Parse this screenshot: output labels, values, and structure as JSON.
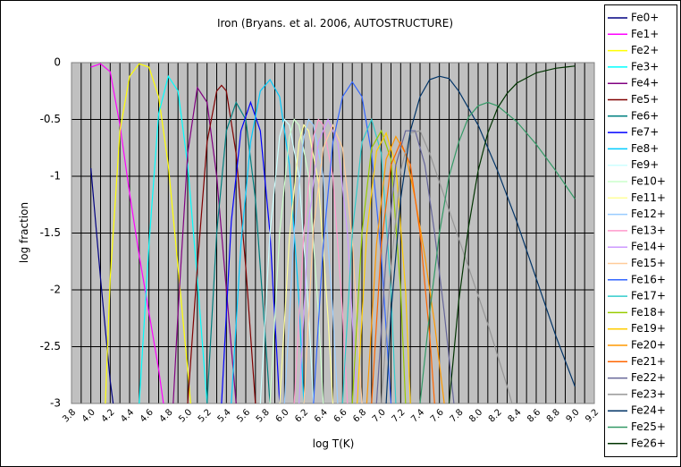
{
  "chart_data": {
    "type": "line",
    "title": "Iron (Bryans. et al. 2006, AUTOSTRUCTURE)",
    "xlabel": "log T(K)",
    "ylabel": "log fraction",
    "xlim": [
      3.8,
      9.2
    ],
    "ylim": [
      -3,
      0
    ],
    "xticks": [
      3.8,
      {
        "value": 4,
        "label": "4.0"
      },
      4.2,
      4.4,
      4.6,
      4.8,
      {
        "value": 5,
        "label": "5.0"
      },
      5.2,
      5.4,
      5.6,
      5.8,
      {
        "value": 6,
        "label": "6.0"
      },
      6.2,
      6.4,
      6.6,
      6.8,
      {
        "value": 7,
        "label": "7.0"
      },
      7.2,
      7.4,
      7.6,
      7.8,
      {
        "value": 8,
        "label": "8.0"
      },
      8.2,
      8.4,
      8.6,
      8.8,
      {
        "value": 9,
        "label": "9.0"
      },
      9.2
    ],
    "xminorticks": [
      3.9,
      4.1,
      4.3,
      4.5,
      4.7,
      4.9,
      5.1,
      5.3,
      5.5,
      5.7,
      5.9,
      6.1,
      6.3,
      6.5,
      6.7,
      6.9,
      7.1,
      7.3,
      7.5,
      7.7,
      7.9,
      8.1,
      8.3,
      8.5,
      8.7,
      8.9,
      9.1
    ],
    "yticks": [
      0,
      -0.5,
      -1,
      -1.5,
      -2,
      -2.5,
      -3
    ],
    "grid": true,
    "legend": "right",
    "background": "#c0c0c0",
    "series": [
      {
        "name": "Fe0+",
        "color": "#000080",
        "x": [
          4.0,
          4.1,
          4.2,
          4.23
        ],
        "values": [
          -0.93,
          -1.9,
          -2.8,
          -3
        ]
      },
      {
        "name": "Fe1+",
        "color": "#ff00ff",
        "x": [
          4.0,
          4.1,
          4.2,
          4.3,
          4.4,
          4.5,
          4.6,
          4.7,
          4.75
        ],
        "values": [
          -0.04,
          -0.01,
          -0.08,
          -0.55,
          -1.15,
          -1.7,
          -2.2,
          -2.7,
          -3
        ]
      },
      {
        "name": "Fe2+",
        "color": "#ffff00",
        "x": [
          4.15,
          4.2,
          4.3,
          4.4,
          4.5,
          4.6,
          4.7,
          4.8,
          4.9,
          5.0,
          5.03
        ],
        "values": [
          -3,
          -1.9,
          -0.6,
          -0.12,
          -0.01,
          -0.04,
          -0.3,
          -0.9,
          -1.8,
          -2.7,
          -3
        ]
      },
      {
        "name": "Fe3+",
        "color": "#00ffff",
        "x": [
          4.5,
          4.6,
          4.7,
          4.8,
          4.9,
          5.0,
          5.1,
          5.2
        ],
        "values": [
          -3,
          -1.6,
          -0.45,
          -0.12,
          -0.25,
          -0.9,
          -1.9,
          -3
        ]
      },
      {
        "name": "Fe4+",
        "color": "#800080",
        "x": [
          4.85,
          4.9,
          5.0,
          5.1,
          5.2,
          5.3,
          5.4,
          5.5
        ],
        "values": [
          -3,
          -2.2,
          -0.8,
          -0.22,
          -0.35,
          -1.0,
          -2.0,
          -3
        ]
      },
      {
        "name": "Fe5+",
        "color": "#800000",
        "x": [
          5.0,
          5.1,
          5.2,
          5.3,
          5.35,
          5.4,
          5.5,
          5.6,
          5.7
        ],
        "values": [
          -3,
          -1.8,
          -0.7,
          -0.25,
          -0.2,
          -0.25,
          -0.8,
          -1.8,
          -3
        ]
      },
      {
        "name": "Fe6+",
        "color": "#008080",
        "x": [
          5.2,
          5.3,
          5.4,
          5.5,
          5.6,
          5.7,
          5.8,
          5.85
        ],
        "values": [
          -3,
          -1.5,
          -0.6,
          -0.35,
          -0.5,
          -1.2,
          -2.4,
          -3
        ]
      },
      {
        "name": "Fe7+",
        "color": "#0000ff",
        "x": [
          5.35,
          5.45,
          5.55,
          5.65,
          5.75,
          5.85,
          5.95
        ],
        "values": [
          -3,
          -1.4,
          -0.6,
          -0.35,
          -0.6,
          -1.5,
          -3
        ]
      },
      {
        "name": "Fe8+",
        "color": "#00ccff",
        "x": [
          5.45,
          5.55,
          5.65,
          5.75,
          5.85,
          5.95,
          6.05,
          6.15,
          6.2
        ],
        "values": [
          -3,
          -1.6,
          -0.7,
          -0.25,
          -0.15,
          -0.3,
          -0.9,
          -2.1,
          -3
        ]
      },
      {
        "name": "Fe9+",
        "color": "#ccffff",
        "x": [
          5.75,
          5.85,
          5.95,
          6.0,
          6.05,
          6.15,
          6.25,
          6.3
        ],
        "values": [
          -3,
          -1.5,
          -0.65,
          -0.5,
          -0.55,
          -1.0,
          -2.2,
          -3
        ]
      },
      {
        "name": "Fe10+",
        "color": "#ccffcc",
        "x": [
          5.85,
          5.95,
          6.05,
          6.1,
          6.15,
          6.25,
          6.35,
          6.4
        ],
        "values": [
          -3,
          -1.5,
          -0.65,
          -0.5,
          -0.55,
          -1.0,
          -2.2,
          -3
        ]
      },
      {
        "name": "Fe11+",
        "color": "#ffff99",
        "x": [
          5.95,
          6.05,
          6.15,
          6.2,
          6.25,
          6.35,
          6.45,
          6.5
        ],
        "values": [
          -3,
          -1.55,
          -0.7,
          -0.55,
          -0.6,
          -1.05,
          -2.25,
          -3
        ]
      },
      {
        "name": "Fe12+",
        "color": "#99ccff",
        "x": [
          6.0,
          6.1,
          6.2,
          6.25,
          6.3,
          6.4,
          6.5,
          6.55
        ],
        "values": [
          -3,
          -1.5,
          -0.65,
          -0.5,
          -0.55,
          -1.0,
          -2.2,
          -3
        ]
      },
      {
        "name": "Fe13+",
        "color": "#ff99cc",
        "x": [
          6.1,
          6.2,
          6.3,
          6.35,
          6.4,
          6.5,
          6.6,
          6.65
        ],
        "values": [
          -3,
          -1.5,
          -0.65,
          -0.5,
          -0.55,
          -1.0,
          -2.2,
          -3
        ]
      },
      {
        "name": "Fe14+",
        "color": "#cc99ff",
        "x": [
          6.15,
          6.25,
          6.35,
          6.45,
          6.55,
          6.65,
          6.75
        ],
        "values": [
          -3,
          -1.4,
          -0.7,
          -0.5,
          -0.7,
          -1.5,
          -3
        ]
      },
      {
        "name": "Fe15+",
        "color": "#ffcc99",
        "x": [
          6.2,
          6.3,
          6.4,
          6.5,
          6.6,
          6.7,
          6.8
        ],
        "values": [
          -3,
          -1.45,
          -0.75,
          -0.55,
          -0.75,
          -1.55,
          -3
        ]
      },
      {
        "name": "Fe16+",
        "color": "#3366ff",
        "x": [
          6.3,
          6.4,
          6.5,
          6.6,
          6.7,
          6.8,
          6.9,
          7.0,
          7.1
        ],
        "values": [
          -3,
          -1.6,
          -0.7,
          -0.3,
          -0.17,
          -0.3,
          -0.8,
          -1.7,
          -3
        ]
      },
      {
        "name": "Fe17+",
        "color": "#33cccc",
        "x": [
          6.6,
          6.7,
          6.8,
          6.9,
          7.0,
          7.1,
          7.15
        ],
        "values": [
          -3,
          -1.5,
          -0.7,
          -0.5,
          -0.8,
          -2.0,
          -3
        ]
      },
      {
        "name": "Fe18+",
        "color": "#99cc00",
        "x": [
          6.7,
          6.8,
          6.9,
          7.0,
          7.1,
          7.2,
          7.25
        ],
        "values": [
          -3,
          -1.5,
          -0.75,
          -0.6,
          -0.85,
          -2.0,
          -3
        ]
      },
      {
        "name": "Fe19+",
        "color": "#ffcc00",
        "x": [
          6.75,
          6.85,
          6.95,
          7.05,
          7.15,
          7.25,
          7.3
        ],
        "values": [
          -3,
          -1.5,
          -0.78,
          -0.62,
          -0.9,
          -2.0,
          -3
        ]
      },
      {
        "name": "Fe20+",
        "color": "#ff9900",
        "x": [
          6.85,
          6.95,
          7.05,
          7.15,
          7.25,
          7.35,
          7.45,
          7.55,
          7.65
        ],
        "values": [
          -3,
          -1.6,
          -0.85,
          -0.65,
          -0.8,
          -1.2,
          -1.7,
          -2.3,
          -3
        ]
      },
      {
        "name": "Fe21+",
        "color": "#ff6600",
        "x": [
          6.9,
          7.0,
          7.1,
          7.2,
          7.3,
          7.4,
          7.5,
          7.55
        ],
        "values": [
          -3,
          -1.6,
          -0.9,
          -0.7,
          -0.9,
          -1.5,
          -2.4,
          -3
        ]
      },
      {
        "name": "Fe22+",
        "color": "#666699",
        "x": [
          6.95,
          7.05,
          7.15,
          7.25,
          7.35,
          7.45,
          7.55,
          7.65,
          7.75
        ],
        "values": [
          -3,
          -1.7,
          -0.9,
          -0.6,
          -0.6,
          -0.9,
          -1.5,
          -2.2,
          -3
        ]
      },
      {
        "name": "Fe23+",
        "color": "#969696",
        "x": [
          7.0,
          7.1,
          7.2,
          7.3,
          7.4,
          7.5,
          7.7,
          7.9,
          8.1,
          8.3,
          8.35
        ],
        "values": [
          -3,
          -1.8,
          -0.95,
          -0.62,
          -0.6,
          -0.8,
          -1.3,
          -1.8,
          -2.3,
          -2.85,
          -3
        ]
      },
      {
        "name": "Fe24+",
        "color": "#003366",
        "x": [
          7.05,
          7.1,
          7.2,
          7.3,
          7.4,
          7.5,
          7.6,
          7.7,
          7.8,
          8.0,
          8.2,
          8.4,
          8.6,
          8.8,
          9.0
        ],
        "values": [
          -3,
          -2.2,
          -1.2,
          -0.6,
          -0.3,
          -0.15,
          -0.12,
          -0.14,
          -0.25,
          -0.55,
          -0.95,
          -1.4,
          -1.9,
          -2.4,
          -2.85
        ]
      },
      {
        "name": "Fe25+",
        "color": "#339966",
        "x": [
          7.4,
          7.5,
          7.6,
          7.7,
          7.8,
          7.9,
          8.0,
          8.1,
          8.2,
          8.4,
          8.6,
          8.8,
          9.0
        ],
        "values": [
          -3,
          -2.2,
          -1.5,
          -1.0,
          -0.7,
          -0.48,
          -0.38,
          -0.35,
          -0.38,
          -0.52,
          -0.72,
          -0.95,
          -1.2
        ]
      },
      {
        "name": "Fe26+",
        "color": "#003300",
        "x": [
          7.7,
          7.8,
          7.9,
          8.0,
          8.1,
          8.2,
          8.3,
          8.4,
          8.6,
          8.8,
          9.0
        ],
        "values": [
          -3,
          -2.1,
          -1.45,
          -0.95,
          -0.62,
          -0.4,
          -0.27,
          -0.18,
          -0.09,
          -0.05,
          -0.03
        ]
      }
    ]
  }
}
